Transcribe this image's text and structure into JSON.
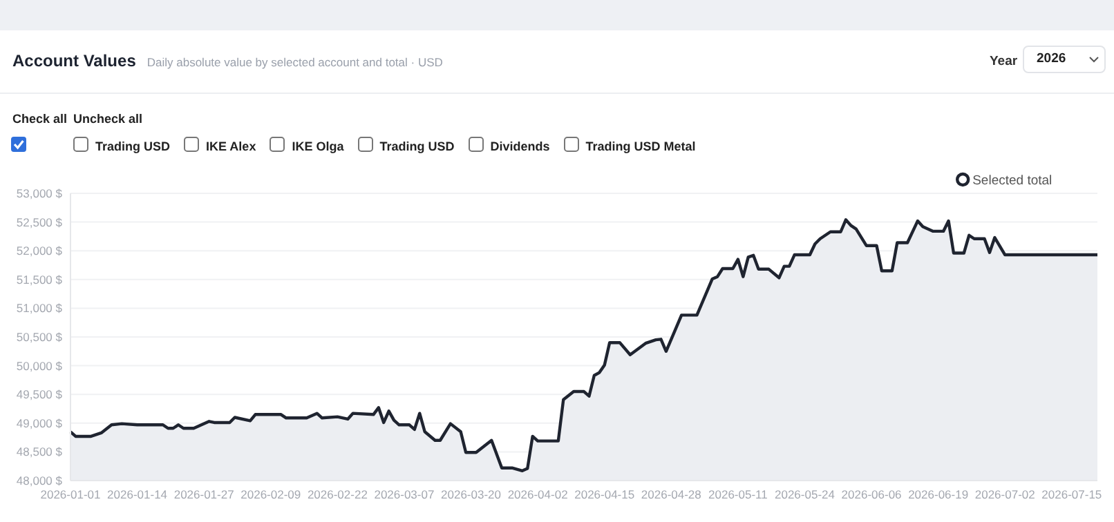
{
  "chart_data": {
    "type": "area",
    "title": "Account Values",
    "subtitle": "Daily absolute value by selected account and total · USD",
    "annotations": [
      "Year",
      "2026",
      "Check all",
      "Uncheck all",
      "Trading USD",
      "IKE Alex",
      "IKE Olga",
      "Trading USD",
      "Dividends",
      "Trading USD Metal"
    ],
    "x": [
      "2026-01-01",
      "2026-01-02",
      "2026-01-05",
      "2026-01-07",
      "2026-01-09",
      "2026-01-11",
      "2026-01-14",
      "2026-01-19",
      "2026-01-20",
      "2026-01-21",
      "2026-01-22",
      "2026-01-23",
      "2026-01-25",
      "2026-01-28",
      "2026-01-29",
      "2026-02-01",
      "2026-02-02",
      "2026-02-05",
      "2026-02-06",
      "2026-02-11",
      "2026-02-12",
      "2026-02-16",
      "2026-02-18",
      "2026-02-19",
      "2026-02-22",
      "2026-02-24",
      "2026-02-25",
      "2026-03-01",
      "2026-03-02",
      "2026-03-03",
      "2026-03-04",
      "2026-03-05",
      "2026-03-06",
      "2026-03-08",
      "2026-03-09",
      "2026-03-10",
      "2026-03-11",
      "2026-03-13",
      "2026-03-14",
      "2026-03-16",
      "2026-03-18",
      "2026-03-19",
      "2026-03-21",
      "2026-03-24",
      "2026-03-26",
      "2026-03-28",
      "2026-03-30",
      "2026-03-31",
      "2026-04-01",
      "2026-04-02",
      "2026-04-06",
      "2026-04-07",
      "2026-04-09",
      "2026-04-11",
      "2026-04-12",
      "2026-04-13",
      "2026-04-14",
      "2026-04-15",
      "2026-04-16",
      "2026-04-18",
      "2026-04-20",
      "2026-04-23",
      "2026-04-25",
      "2026-04-26",
      "2026-04-27",
      "2026-04-30",
      "2026-05-03",
      "2026-05-06",
      "2026-05-07",
      "2026-05-08",
      "2026-05-10",
      "2026-05-11",
      "2026-05-12",
      "2026-05-13",
      "2026-05-14",
      "2026-05-15",
      "2026-05-17",
      "2026-05-19",
      "2026-05-20",
      "2026-05-21",
      "2026-05-22",
      "2026-05-25",
      "2026-05-26",
      "2026-05-27",
      "2026-05-29",
      "2026-05-31",
      "2026-06-01",
      "2026-06-02",
      "2026-06-03",
      "2026-06-05",
      "2026-06-07",
      "2026-06-08",
      "2026-06-10",
      "2026-06-11",
      "2026-06-13",
      "2026-06-15",
      "2026-06-16",
      "2026-06-18",
      "2026-06-20",
      "2026-06-21",
      "2026-06-22",
      "2026-06-24",
      "2026-06-25",
      "2026-06-26",
      "2026-06-28",
      "2026-06-29",
      "2026-06-30",
      "2026-07-02",
      "2026-07-20"
    ],
    "series": [
      {
        "name": "Selected total",
        "color": "#1f2430",
        "values": [
          48850,
          48770,
          48770,
          48830,
          48970,
          48990,
          48970,
          48970,
          48910,
          48910,
          48970,
          48910,
          48910,
          49030,
          49010,
          49010,
          49100,
          49040,
          49150,
          49150,
          49090,
          49090,
          49170,
          49090,
          49110,
          49070,
          49170,
          49150,
          49270,
          49010,
          49210,
          49050,
          48970,
          48970,
          48890,
          49170,
          48850,
          48700,
          48700,
          48990,
          48850,
          48490,
          48490,
          48700,
          48220,
          48220,
          48170,
          48210,
          48770,
          48690,
          48690,
          49410,
          49550,
          49550,
          49470,
          49830,
          49880,
          50010,
          50400,
          50400,
          50190,
          50390,
          50450,
          50460,
          50250,
          50880,
          50880,
          51510,
          51550,
          51690,
          51690,
          51850,
          51550,
          51890,
          51920,
          51680,
          51680,
          51530,
          51730,
          51730,
          51930,
          51930,
          52120,
          52210,
          52330,
          52330,
          52540,
          52440,
          52380,
          52090,
          52090,
          51650,
          51650,
          52140,
          52140,
          52520,
          52420,
          52340,
          52340,
          52520,
          51960,
          51960,
          52270,
          52210,
          52210,
          51970,
          52230,
          51930,
          51930
        ]
      }
    ],
    "xlim": [
      "2026-01-01",
      "2026-07-20"
    ],
    "xticks": [
      "2026-01-01",
      "2026-01-14",
      "2026-01-27",
      "2026-02-09",
      "2026-02-22",
      "2026-03-07",
      "2026-03-20",
      "2026-04-02",
      "2026-04-15",
      "2026-04-28",
      "2026-05-11",
      "2026-05-24",
      "2026-06-06",
      "2026-06-19",
      "2026-07-02",
      "2026-07-15"
    ],
    "ylim": [
      48000,
      53000
    ],
    "yticks": [
      {
        "value": 48000,
        "label": "48,000 $"
      },
      {
        "value": 48500,
        "label": "48,500 $"
      },
      {
        "value": 49000,
        "label": "49,000 $"
      },
      {
        "value": 49500,
        "label": "49,500 $"
      },
      {
        "value": 50000,
        "label": "50,000 $"
      },
      {
        "value": 50500,
        "label": "50,500 $"
      },
      {
        "value": 51000,
        "label": "51,000 $"
      },
      {
        "value": 51500,
        "label": "51,500 $"
      },
      {
        "value": 52000,
        "label": "52,000 $"
      },
      {
        "value": 52500,
        "label": "52,500 $"
      },
      {
        "value": 53000,
        "label": "53,000 $"
      }
    ],
    "grid": "y",
    "legend": "top right",
    "marker": "none",
    "line_style": "solid"
  }
}
